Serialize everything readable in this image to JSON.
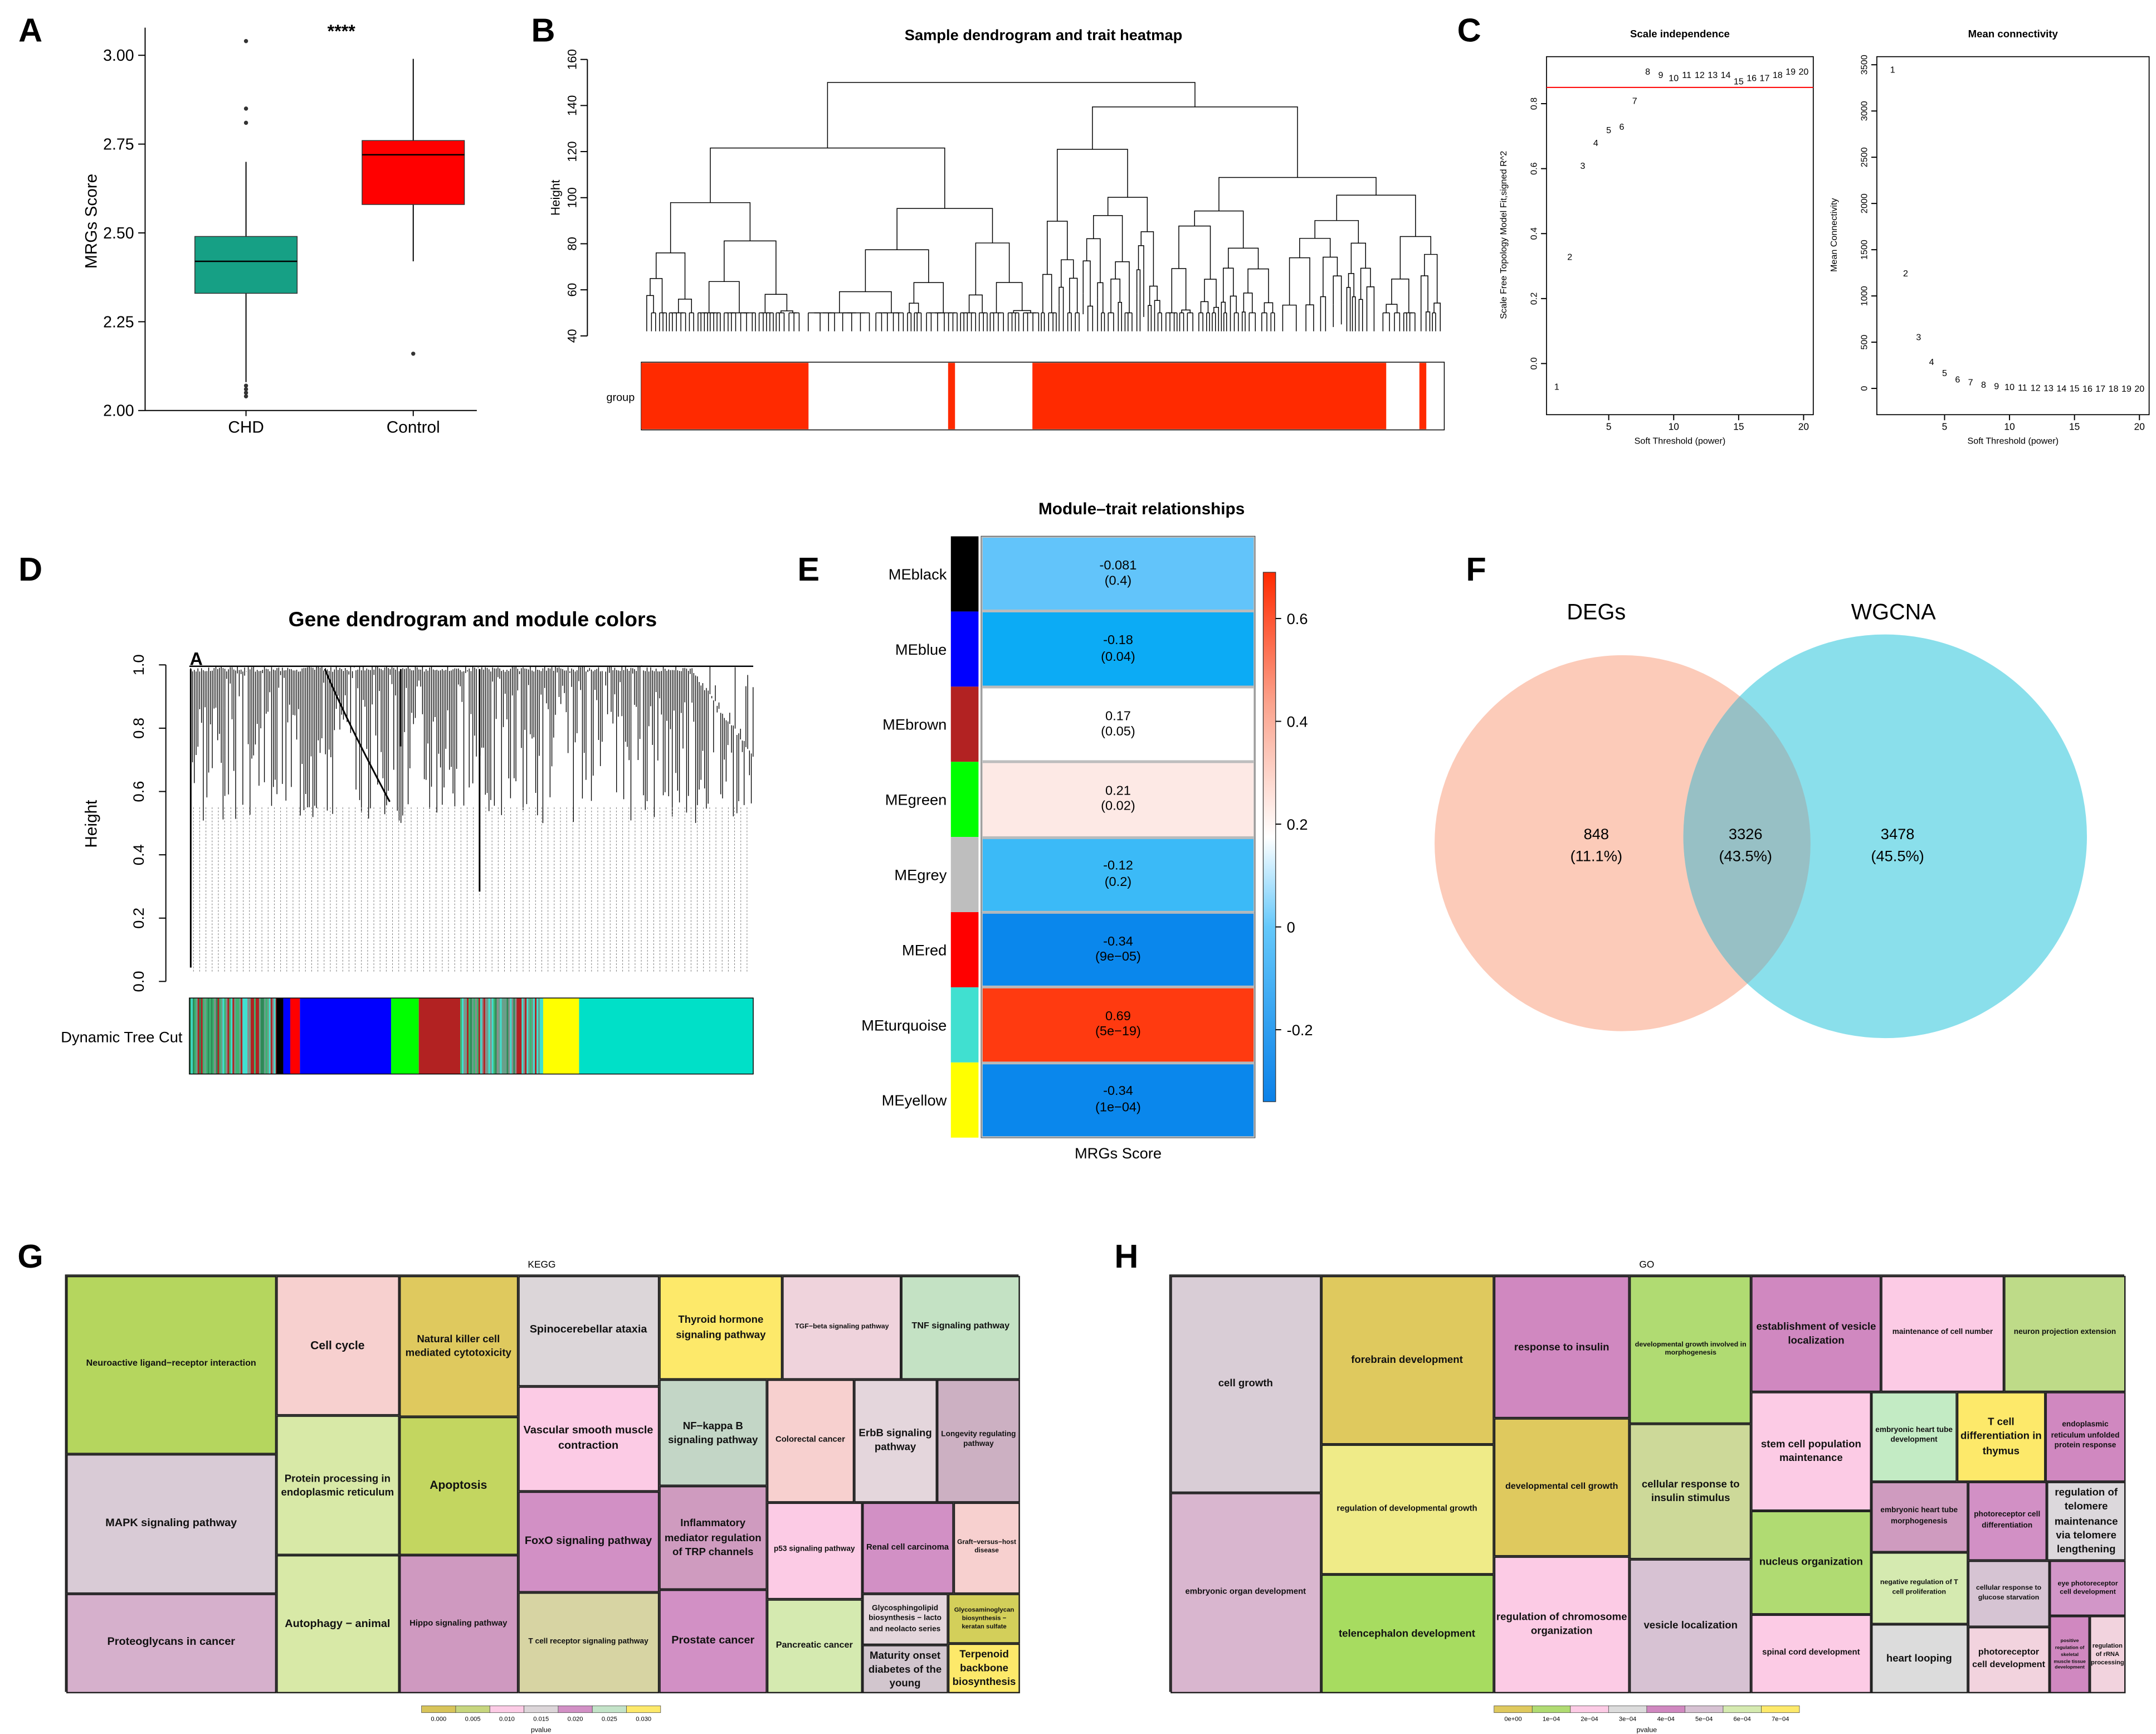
{
  "panel_letters": [
    "A",
    "B",
    "C",
    "D",
    "E",
    "F",
    "G",
    "H"
  ],
  "chart_data": [
    {
      "panel": "A",
      "type": "box",
      "ylabel": "MRGs Score",
      "categories": [
        "CHD",
        "Control"
      ],
      "ylim": [
        2.0,
        3.05
      ],
      "yticks": [
        "2.00",
        "2.25",
        "2.50",
        "2.75",
        "3.00"
      ],
      "significance": "****",
      "boxes": [
        {
          "category": "CHD",
          "color": "#16a085",
          "q1": 2.33,
          "median": 2.42,
          "q3": 2.49,
          "whisker_low": 2.08,
          "whisker_high": 2.7,
          "outliers": [
            3.04,
            2.85,
            2.81,
            2.07,
            2.06,
            2.05,
            2.04
          ]
        },
        {
          "category": "Control",
          "color": "#ff0000",
          "q1": 2.58,
          "median": 2.72,
          "q3": 2.76,
          "whisker_low": 2.42,
          "whisker_high": 2.99,
          "outliers": [
            2.16
          ]
        }
      ]
    },
    {
      "panel": "B",
      "type": "dendrogram",
      "title": "Sample dendrogram and trait heatmap",
      "ylabel": "Height",
      "yticks": [
        "40",
        "60",
        "80",
        "100",
        "120",
        "140",
        "160"
      ],
      "trait_label": "group",
      "trait_color": "#ff2a00"
    },
    {
      "panel": "C1",
      "type": "scatter",
      "title": "Scale independence",
      "xlabel": "Soft Threshold (power)",
      "ylabel": "Scale Free Topology Model Fit,signed R^2",
      "xticks": [
        "5",
        "10",
        "15",
        "20"
      ],
      "yticks": [
        "0.0",
        "0.2",
        "0.4",
        "0.6",
        "0.8"
      ],
      "threshold": 0.85,
      "point_color": "#ff0000",
      "x": [
        1,
        2,
        3,
        4,
        5,
        6,
        7,
        8,
        9,
        10,
        11,
        12,
        13,
        14,
        15,
        16,
        17,
        18,
        19,
        20
      ],
      "y": [
        -0.07,
        0.33,
        0.61,
        0.68,
        0.72,
        0.73,
        0.81,
        0.9,
        0.89,
        0.88,
        0.89,
        0.89,
        0.89,
        0.89,
        0.87,
        0.88,
        0.88,
        0.89,
        0.9,
        0.9
      ]
    },
    {
      "panel": "C2",
      "type": "scatter",
      "title": "Mean connectivity",
      "xlabel": "Soft Threshold (power)",
      "ylabel": "Mean Connectivity",
      "xticks": [
        "5",
        "10",
        "15",
        "20"
      ],
      "yticks": [
        "0",
        "500",
        "1000",
        "1500",
        "2000",
        "2500",
        "3000",
        "3500"
      ],
      "point_color": "#ff0000",
      "x": [
        1,
        2,
        3,
        4,
        5,
        6,
        7,
        8,
        9,
        10,
        11,
        12,
        13,
        14,
        15,
        16,
        17,
        18,
        19,
        20
      ],
      "y": [
        3450,
        1250,
        560,
        290,
        170,
        100,
        70,
        45,
        30,
        20,
        15,
        10,
        8,
        6,
        4,
        3,
        2,
        2,
        1,
        1
      ]
    },
    {
      "panel": "D",
      "type": "dendrogram",
      "title": "Gene dendrogram and module colors",
      "ylabel": "Height",
      "yticks": [
        "0.0",
        "0.2",
        "0.4",
        "0.6",
        "0.8",
        "1.0"
      ],
      "color_row_label": "Dynamic Tree Cut",
      "marker": "A"
    },
    {
      "panel": "E",
      "type": "heatmap",
      "title": "Module–trait relationships",
      "xlabel": "MRGs Score",
      "colorbar_ticks": [
        "0.6",
        "0.4",
        "0.2",
        "0",
        "-0.2"
      ],
      "colorbar_range": [
        -0.34,
        0.69
      ],
      "rows": [
        {
          "module": "MEblack",
          "color": "#000000",
          "r": "-0.081",
          "p": "(0.4)",
          "fill": "#62c4fa"
        },
        {
          "module": "MEblue",
          "color": "#0000ff",
          "r": "-0.18",
          "p": "(0.04)",
          "fill": "#0cabf5"
        },
        {
          "module": "MEbrown",
          "color": "#b22222",
          "r": "0.17",
          "p": "(0.05)",
          "fill": "#ffffff"
        },
        {
          "module": "MEgreen",
          "color": "#00ff00",
          "r": "0.21",
          "p": "(0.02)",
          "fill": "#fde9e5"
        },
        {
          "module": "MEgrey",
          "color": "#bebebe",
          "r": "-0.12",
          "p": "(0.2)",
          "fill": "#3bbaf7"
        },
        {
          "module": "MEred",
          "color": "#ff0000",
          "r": "-0.34",
          "p": "(9e−05)",
          "fill": "#0a87ec"
        },
        {
          "module": "MEturquoise",
          "color": "#40e0d0",
          "r": "0.69",
          "p": "(5e−19)",
          "fill": "#ff3a10"
        },
        {
          "module": "MEyellow",
          "color": "#ffff00",
          "r": "-0.34",
          "p": "(1e−04)",
          "fill": "#0a87ec"
        }
      ]
    },
    {
      "panel": "F",
      "type": "venn",
      "sets": [
        {
          "name": "DEGs",
          "color": "#f9ad95"
        },
        {
          "name": "WGCNA",
          "color": "#2ec3dc"
        }
      ],
      "regions": [
        {
          "count": "848",
          "percent": "(11.1%)"
        },
        {
          "count": "3326",
          "percent": "(43.5%)"
        },
        {
          "count": "3478",
          "percent": "(45.5%)"
        }
      ]
    },
    {
      "panel": "G",
      "type": "treemap",
      "title": "KEGG",
      "legend_title": "pvalue",
      "legend": [
        {
          "label": "0.000",
          "color": "#d8c45a"
        },
        {
          "label": "0.005",
          "color": "#c7d67e"
        },
        {
          "label": "0.010",
          "color": "#fccbe5"
        },
        {
          "label": "0.015",
          "color": "#dcd6d9"
        },
        {
          "label": "0.020",
          "color": "#d290c5"
        },
        {
          "label": "0.025",
          "color": "#c3e3c8"
        },
        {
          "label": "0.030",
          "color": "#fde96a"
        }
      ],
      "items": [
        {
          "label": "Neuroactive ligand−receptor interaction",
          "color": "#b5d65e"
        },
        {
          "label": "MAPK signaling pathway",
          "color": "#d9cbd6"
        },
        {
          "label": "Proteoglycans in cancer",
          "color": "#d6b0cc"
        },
        {
          "label": "Cell cycle",
          "color": "#f7d0cf"
        },
        {
          "label": "Protein processing in endoplasmic reticulum",
          "color": "#d8e9a7"
        },
        {
          "label": "Autophagy − animal",
          "color": "#d8e9a7"
        },
        {
          "label": "Natural killer cell mediated cytotoxicity",
          "color": "#dfc95e"
        },
        {
          "label": "Apoptosis",
          "color": "#c3d660"
        },
        {
          "label": "Hippo signaling pathway",
          "color": "#cf99c0"
        },
        {
          "label": "Spinocerebellar ataxia",
          "color": "#dcd6d9"
        },
        {
          "label": "Vascular smooth muscle contraction",
          "color": "#fccbe5"
        },
        {
          "label": "FoxO signaling pathway",
          "color": "#d290c5"
        },
        {
          "label": "T cell receptor signaling pathway",
          "color": "#d7d4a3"
        },
        {
          "label": "Thyroid hormone signaling pathway",
          "color": "#fde96a"
        },
        {
          "label": "TGF−beta signaling pathway",
          "color": "#efd3dc"
        },
        {
          "label": "TNF signaling pathway",
          "color": "#c4e2c4"
        },
        {
          "label": "NF−kappa B signaling pathway",
          "color": "#c3d6c6"
        },
        {
          "label": "Inflammatory mediator regulation of TRP channels",
          "color": "#cf9bbf"
        },
        {
          "label": "Prostate cancer",
          "color": "#d290c5"
        },
        {
          "label": "Colorectal cancer",
          "color": "#f7d0cf"
        },
        {
          "label": "ErbB signaling pathway",
          "color": "#e4d6dc"
        },
        {
          "label": "Longevity regulating pathway",
          "color": "#ccb0c2"
        },
        {
          "label": "p53 signaling pathway",
          "color": "#fccbe5"
        },
        {
          "label": "Renal cell carcinoma",
          "color": "#d290c5"
        },
        {
          "label": "Graft−versus−host disease",
          "color": "#f7d0cf"
        },
        {
          "label": "Pancreatic cancer",
          "color": "#d5eab0"
        },
        {
          "label": "Glycosphingolipid biosynthesis − lacto and neolacto series",
          "color": "#e4d6dc"
        },
        {
          "label": "Glycosaminoglycan biosynthesis − keratan sulfate",
          "color": "#d3cf5a"
        },
        {
          "label": "Maturity onset diabetes of the young",
          "color": "#d2c6ce"
        },
        {
          "label": "Terpenoid backbone biosynthesis",
          "color": "#fde96a"
        }
      ]
    },
    {
      "panel": "H",
      "type": "treemap",
      "title": "GO",
      "legend_title": "pvalue",
      "legend": [
        {
          "label": "0e+00",
          "color": "#dfc95e"
        },
        {
          "label": "1e−04",
          "color": "#b0db72"
        },
        {
          "label": "2e−04",
          "color": "#fccbe5"
        },
        {
          "label": "3e−04",
          "color": "#dcdcdc"
        },
        {
          "label": "4e−04",
          "color": "#d088c0"
        },
        {
          "label": "5e−04",
          "color": "#d7c2d3"
        },
        {
          "label": "6e−04",
          "color": "#d5eab0"
        },
        {
          "label": "7e−04",
          "color": "#fde96a"
        }
      ],
      "items": [
        {
          "label": "cell growth",
          "color": "#d9cdd6"
        },
        {
          "label": "embryonic organ development",
          "color": "#d9b6cf"
        },
        {
          "label": "forebrain development",
          "color": "#dfc95e"
        },
        {
          "label": "regulation of developmental growth",
          "color": "#efeb88"
        },
        {
          "label": "telencephalon development",
          "color": "#a7dc60"
        },
        {
          "label": "response to insulin",
          "color": "#d088c0"
        },
        {
          "label": "developmental cell growth",
          "color": "#dfc95e"
        },
        {
          "label": "regulation of chromosome organization",
          "color": "#fccbe5"
        },
        {
          "label": "developmental growth involved in morphogenesis",
          "color": "#b0db72"
        },
        {
          "label": "cellular response to insulin stimulus",
          "color": "#cdd999"
        },
        {
          "label": "vesicle localization",
          "color": "#d7c2d3"
        },
        {
          "label": "establishment of vesicle localization",
          "color": "#d088c0"
        },
        {
          "label": "maintenance of cell number",
          "color": "#fccbe5"
        },
        {
          "label": "neuron projection extension",
          "color": "#bedb88"
        },
        {
          "label": "stem cell population maintenance",
          "color": "#fccbe5"
        },
        {
          "label": "nucleus organization",
          "color": "#b0db72"
        },
        {
          "label": "spinal cord development",
          "color": "#fccbe5"
        },
        {
          "label": "embryonic heart tube development",
          "color": "#c3ebc4"
        },
        {
          "label": "T cell differentiation in thymus",
          "color": "#fde96a"
        },
        {
          "label": "endoplasmic reticulum unfolded protein response",
          "color": "#d088c0"
        },
        {
          "label": "embryonic heart tube morphogenesis",
          "color": "#cf9bbf"
        },
        {
          "label": "photoreceptor cell differentiation",
          "color": "#d290c5"
        },
        {
          "label": "regulation of telomere maintenance via telomere lengthening",
          "color": "#dcd8dc"
        },
        {
          "label": "negative regulation of T cell proliferation",
          "color": "#d5eab0"
        },
        {
          "label": "cellular response to glucose starvation",
          "color": "#d6c4d3"
        },
        {
          "label": "eye photoreceptor cell development",
          "color": "#d296c8"
        },
        {
          "label": "heart looping",
          "color": "#dcdcdc"
        },
        {
          "label": "photoreceptor cell development",
          "color": "#f2d3de"
        },
        {
          "label": "positive regulation of skeletal muscle tissue development",
          "color": "#d088c0"
        },
        {
          "label": "regulation of rRNA processing",
          "color": "#f2d3de"
        }
      ]
    }
  ]
}
